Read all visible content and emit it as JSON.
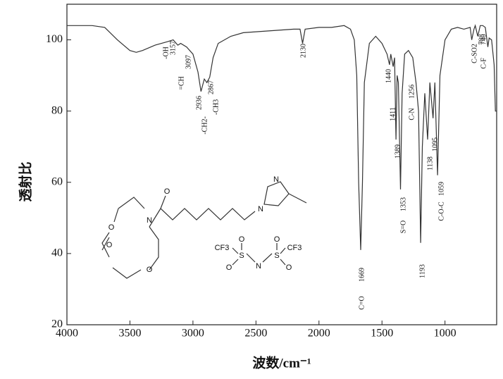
{
  "chart_data": {
    "type": "line",
    "x_label": "波数/cm⁻¹",
    "y_label": "透射比",
    "xlim": [
      4000,
      590
    ],
    "ylim": [
      20,
      110
    ],
    "xticks": [
      4000,
      3500,
      3000,
      2500,
      2000,
      1500,
      1000
    ],
    "yticks": [
      20,
      40,
      60,
      80,
      100
    ],
    "series": [
      {
        "color": "#333333",
        "x": [
          4000,
          3800,
          3700,
          3600,
          3500,
          3450,
          3400,
          3300,
          3200,
          3157,
          3120,
          3097,
          3050,
          3000,
          2960,
          2936,
          2910,
          2890,
          2867,
          2840,
          2800,
          2700,
          2600,
          2400,
          2200,
          2150,
          2130,
          2110,
          2000,
          1900,
          1800,
          1750,
          1720,
          1700,
          1685,
          1669,
          1655,
          1640,
          1600,
          1550,
          1500,
          1460,
          1440,
          1430,
          1411,
          1400,
          1389,
          1380,
          1370,
          1353,
          1340,
          1320,
          1290,
          1256,
          1230,
          1210,
          1200,
          1193,
          1180,
          1160,
          1138,
          1120,
          1095,
          1080,
          1059,
          1040,
          1000,
          950,
          900,
          850,
          800,
          788,
          770,
          760,
          740,
          720,
          700,
          680,
          660,
          650,
          630,
          610,
          600,
          590
        ],
        "values": [
          104,
          104,
          103.5,
          100,
          97,
          96.5,
          97,
          98.5,
          99.5,
          100,
          98.5,
          99,
          98,
          96,
          91,
          85.5,
          89,
          88,
          89.5,
          95,
          99,
          101,
          102,
          102.5,
          103,
          103,
          99,
          103,
          103.5,
          103.5,
          104,
          103,
          100,
          90,
          60,
          41,
          60,
          88,
          99,
          101,
          99,
          96,
          93,
          96,
          92.5,
          95,
          72,
          90,
          88,
          58,
          85,
          96,
          97,
          95,
          88,
          80,
          58,
          43,
          70,
          85,
          72,
          88,
          78,
          88,
          62,
          90,
          100,
          103,
          103.5,
          103,
          103.5,
          100,
          103,
          104,
          101,
          104,
          104,
          103.5,
          98,
          100.5,
          100,
          93,
          80,
          80
        ]
      }
    ],
    "annotations": [
      "-OH",
      "3157",
      "=CH",
      "3097",
      "2936",
      "-CH2-",
      "2867",
      "-CH3",
      "2130",
      "1669",
      "C=O",
      "1440",
      "1411",
      "1389",
      "1353",
      "S=O",
      "C-N",
      "1256",
      "1193",
      "1138",
      "1095",
      "1059",
      "C-O-C",
      "C-SO2",
      "788",
      "C-F",
      "740"
    ]
  },
  "structure_labels": [
    "O",
    "N",
    "O",
    "O",
    "O",
    "N",
    "N",
    "CF3",
    "S",
    "O",
    "O",
    "N",
    "S",
    "O",
    "O",
    "CF3"
  ]
}
